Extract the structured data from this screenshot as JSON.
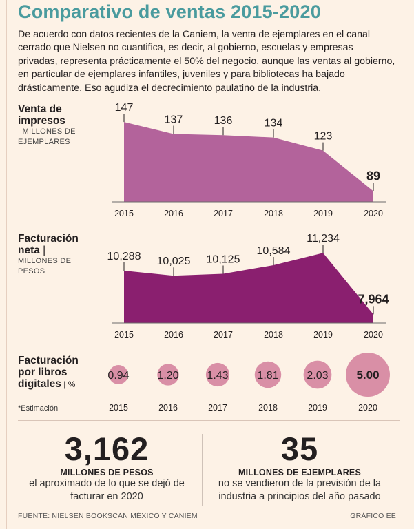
{
  "title": "Comparativo de ventas 2015-2020",
  "intro": "De acuerdo con datos recientes de la Caniem, la venta de ejemplares en el canal cerrado que Nielsen no cuantifica, es decir, al gobierno, escuelas y empresas privadas, representa prácticamente el 50% del negocio, aunque las ventas al gobierno, en particular de ejemplares infantiles, juveniles y para bibliotecas ha bajado drásticamente. Eso agudiza el decrecimiento paulatino de la industria.",
  "charts": {
    "impresos": {
      "label_bold": "Venta de impresos",
      "unit": "| MILLONES DE EJEMPLARES"
    },
    "neta": {
      "label_bold": "Facturación neta",
      "label_sep": " |",
      "unit": "MILLONES DE PESOS"
    },
    "digitales": {
      "label_bold": "Facturación por libros digitales",
      "label_sep": " | ",
      "unit": "%"
    }
  },
  "chart_data": [
    {
      "type": "area",
      "title": "Venta de impresos",
      "ylabel": "MILLONES DE EJEMPLARES",
      "categories": [
        "2015",
        "2016",
        "2017",
        "2018",
        "2019",
        "2020"
      ],
      "values": [
        147,
        137,
        136,
        134,
        123,
        89
      ],
      "value_labels": [
        "147",
        "137",
        "136",
        "134",
        "123",
        "89"
      ],
      "highlight_last": true,
      "color": "#b3639b"
    },
    {
      "type": "area",
      "title": "Facturación neta",
      "ylabel": "MILLONES DE PESOS",
      "categories": [
        "2015",
        "2016",
        "2017",
        "2018",
        "2019",
        "2020"
      ],
      "values": [
        10288,
        10025,
        10125,
        10584,
        11234,
        7964
      ],
      "value_labels": [
        "10,288",
        "10,025",
        "10,125",
        "10,584",
        "11,234",
        "7,964"
      ],
      "highlight_last": true,
      "color": "#8a1f6f"
    },
    {
      "type": "scatter",
      "title": "Facturación por libros digitales",
      "ylabel": "%",
      "categories": [
        "2015",
        "2016",
        "2017",
        "2018",
        "2019",
        "2020"
      ],
      "values": [
        0.94,
        1.2,
        1.43,
        1.81,
        2.03,
        5.0
      ],
      "value_labels": [
        "0.94",
        "1.20",
        "1.43",
        "1.81",
        "2.03",
        "5.00"
      ],
      "highlight_last": true,
      "color": "#d98fa6"
    }
  ],
  "note": "*Estimación",
  "stats": [
    {
      "number": "3,162",
      "caption": "MILLONES DE PESOS",
      "desc": "el aproximado de lo que se dejó de facturar en 2020"
    },
    {
      "number": "35",
      "caption": "MILLONES DE EJEMPLARES",
      "desc": "no se vendieron de la previsión de la industria a principios del año pasado"
    }
  ],
  "footer": {
    "source": "FUENTE: NIELSEN BOOKSCAN MÉXICO Y CANIEM",
    "credit": "GRÁFICO EE"
  }
}
